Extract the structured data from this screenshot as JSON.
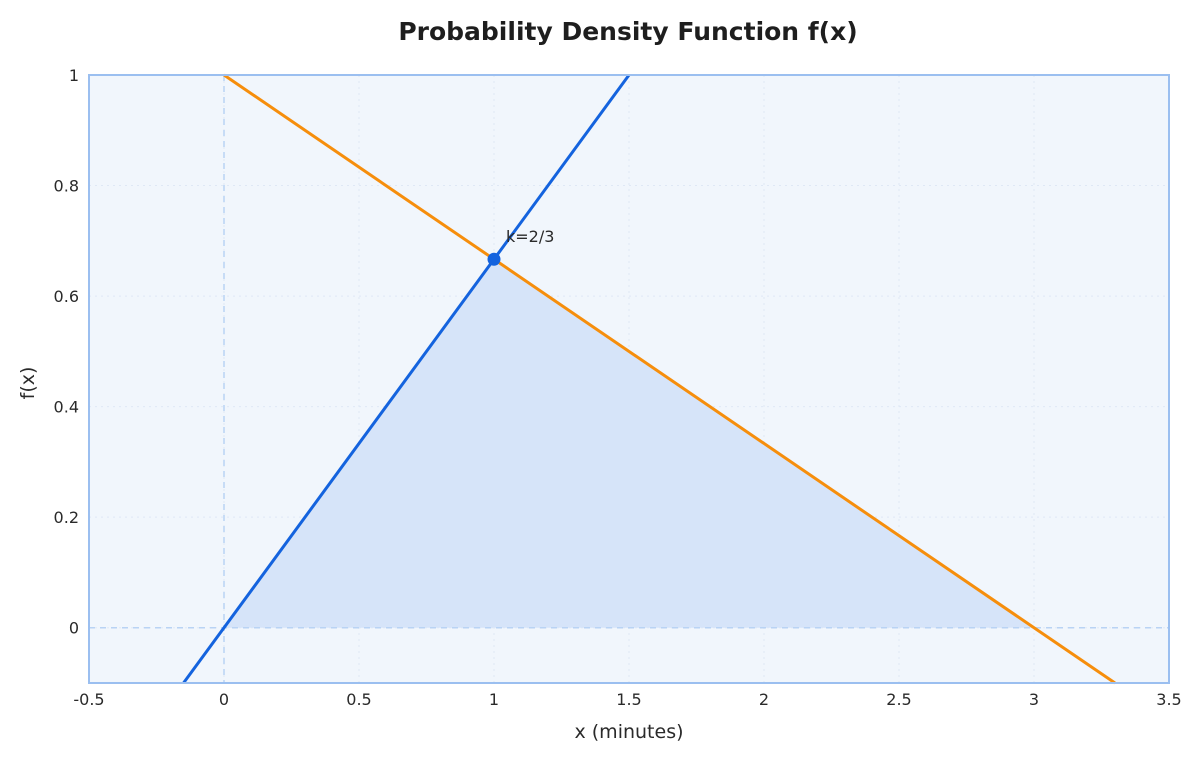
{
  "chart_data": {
    "type": "line",
    "title": "Probability Density Function f(x)",
    "xlabel": "x (minutes)",
    "ylabel": "f(x)",
    "xlim": [
      -0.5,
      3.5
    ],
    "ylim": [
      -0.1,
      1.0
    ],
    "xticks": [
      -0.5,
      0,
      0.5,
      1,
      1.5,
      2,
      2.5,
      3,
      3.5
    ],
    "xtick_labels": [
      "-0.5",
      "0",
      "0.5",
      "1",
      "1.5",
      "2",
      "2.5",
      "3",
      "3.5"
    ],
    "yticks": [
      0,
      0.2,
      0.4,
      0.6,
      0.8,
      1
    ],
    "ytick_labels": [
      "0",
      "0.2",
      "0.4",
      "0.6",
      "0.8",
      "1"
    ],
    "grid": true,
    "series": [
      {
        "color": "#1463de",
        "x": [
          -0.15,
          1.5
        ],
        "y": [
          -0.1,
          1.0
        ]
      },
      {
        "color": "#f68e0c",
        "x": [
          0,
          3.3
        ],
        "y": [
          1.0,
          -0.1
        ]
      }
    ],
    "shaded_region": {
      "color": "#d6e4f9",
      "x": [
        0,
        1,
        3
      ],
      "y": [
        0,
        0.6667,
        0
      ]
    },
    "reference_lines": {
      "x": 0,
      "y": 0,
      "color": "#b9d3f4"
    },
    "point": {
      "x": 1,
      "y": 0.6667,
      "color": "#1463de",
      "label": "k=2/3"
    },
    "plot_background": "#f1f6fc",
    "frame_color": "#9bbff0"
  }
}
